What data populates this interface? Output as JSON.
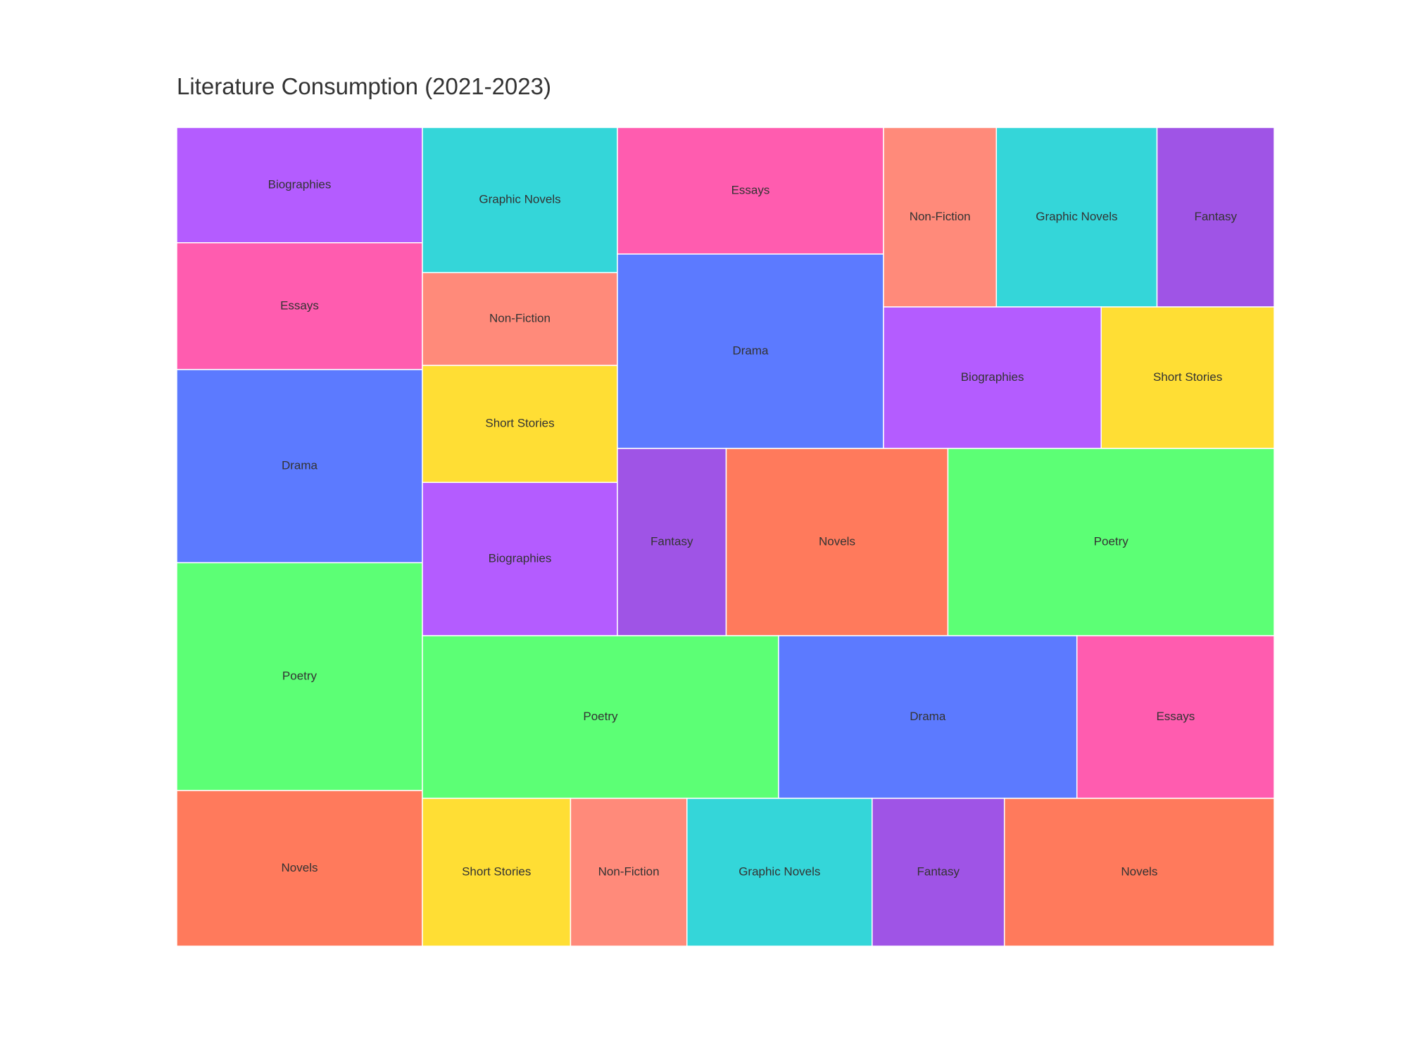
{
  "chart_data": {
    "type": "treemap",
    "title": "Literature Consumption (2021-2023)",
    "colors": {
      "Novels": "#FF7A5C",
      "Poetry": "#5CFF75",
      "Drama": "#5C7AFF",
      "Essays": "#FF5CAF",
      "Biographies": "#B45CFF",
      "Graphic Novels": "#34D6D9",
      "Short Stories": "#FFDE34",
      "Non-Fiction": "#FF8A7A",
      "Fantasy": "#9F54E6"
    },
    "groups": [
      {
        "leaves": [
          {
            "label": "Biographies",
            "value": 4.0
          },
          {
            "label": "Essays",
            "value": 4.4
          },
          {
            "label": "Drama",
            "value": 6.7
          },
          {
            "label": "Poetry",
            "value": 7.9
          },
          {
            "label": "Novels",
            "value": 5.4
          }
        ]
      },
      {
        "leaves": [
          {
            "label": "Graphic Novels",
            "value": 3.6
          },
          {
            "label": "Non-Fiction",
            "value": 2.3
          },
          {
            "label": "Short Stories",
            "value": 2.9
          },
          {
            "label": "Biographies",
            "value": 3.8
          }
        ]
      },
      {
        "leaves": [
          {
            "label": "Essays",
            "value": 4.3
          },
          {
            "label": "Drama",
            "value": 6.6
          }
        ]
      },
      {
        "leaves": [
          {
            "label": "Non-Fiction",
            "value": 2.6
          },
          {
            "label": "Graphic Novels",
            "value": 3.7
          },
          {
            "label": "Fantasy",
            "value": 2.7
          }
        ]
      },
      {
        "leaves": [
          {
            "label": "Biographies",
            "value": 3.9
          },
          {
            "label": "Short Stories",
            "value": 3.1
          }
        ]
      },
      {
        "leaves": [
          {
            "label": "Fantasy",
            "value": 2.6
          },
          {
            "label": "Novels",
            "value": 5.3
          },
          {
            "label": "Poetry",
            "value": 7.8
          }
        ]
      },
      {
        "leaves": [
          {
            "label": "Poetry",
            "value": 7.4
          },
          {
            "label": "Drama",
            "value": 6.2
          },
          {
            "label": "Essays",
            "value": 4.1
          }
        ]
      },
      {
        "leaves": [
          {
            "label": "Short Stories",
            "value": 2.8
          },
          {
            "label": "Non-Fiction",
            "value": 2.2
          },
          {
            "label": "Graphic Novels",
            "value": 3.5
          },
          {
            "label": "Fantasy",
            "value": 2.5
          },
          {
            "label": "Novels",
            "value": 5.1
          }
        ]
      }
    ]
  }
}
